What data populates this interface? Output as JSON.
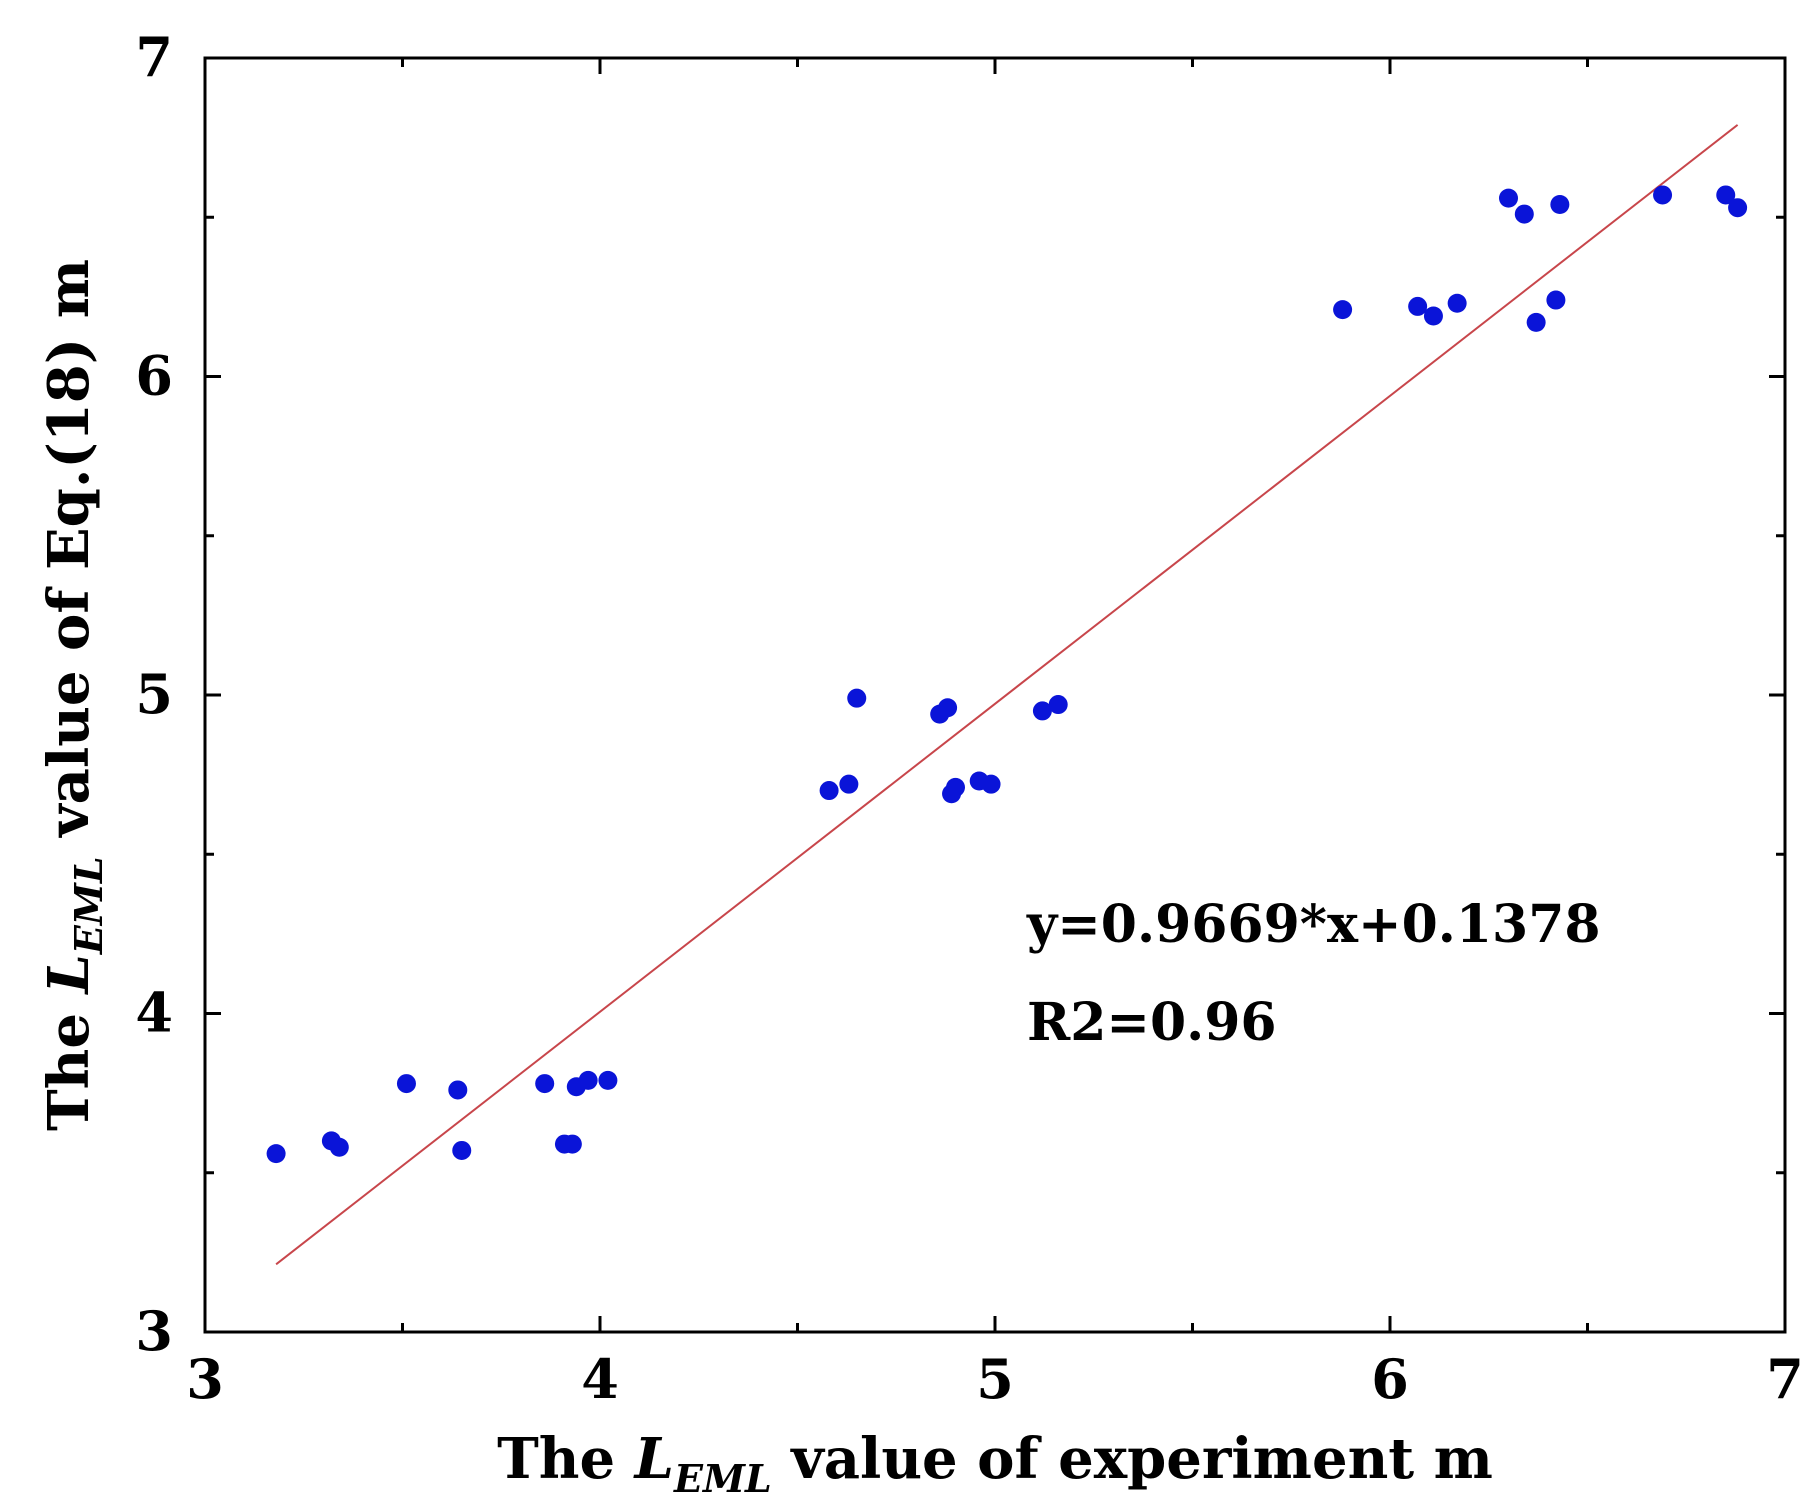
{
  "chart_data": {
    "type": "scatter",
    "title": "",
    "xlabel": {
      "prefix": "The ",
      "symbol": "L",
      "subscript": "EML",
      "suffix": " value of experiment  m"
    },
    "ylabel": {
      "prefix": "The ",
      "symbol": "L",
      "subscript": "EML",
      "suffix": " value of Eq.(18)  m"
    },
    "xlim": [
      3,
      7
    ],
    "ylim": [
      3,
      7
    ],
    "xticks": [
      3,
      4,
      5,
      6,
      7
    ],
    "yticks": [
      3,
      4,
      5,
      6,
      7
    ],
    "xtick_labels": [
      "3",
      "4",
      "5",
      "6",
      "7"
    ],
    "ytick_labels": [
      "3",
      "4",
      "5",
      "6",
      "7"
    ],
    "grid": false,
    "series": [
      {
        "name": "data",
        "color": "#0a14d8",
        "points": [
          [
            3.18,
            3.56
          ],
          [
            3.32,
            3.6
          ],
          [
            3.34,
            3.58
          ],
          [
            3.51,
            3.78
          ],
          [
            3.64,
            3.76
          ],
          [
            3.65,
            3.57
          ],
          [
            3.86,
            3.78
          ],
          [
            3.91,
            3.59
          ],
          [
            3.93,
            3.59
          ],
          [
            3.94,
            3.77
          ],
          [
            3.97,
            3.79
          ],
          [
            4.02,
            3.79
          ],
          [
            4.58,
            4.7
          ],
          [
            4.63,
            4.72
          ],
          [
            4.65,
            4.99
          ],
          [
            4.86,
            4.94
          ],
          [
            4.88,
            4.96
          ],
          [
            4.89,
            4.69
          ],
          [
            4.9,
            4.71
          ],
          [
            4.96,
            4.73
          ],
          [
            4.99,
            4.72
          ],
          [
            5.12,
            4.95
          ],
          [
            5.16,
            4.97
          ],
          [
            5.88,
            6.21
          ],
          [
            6.07,
            6.22
          ],
          [
            6.11,
            6.19
          ],
          [
            6.17,
            6.23
          ],
          [
            6.3,
            6.56
          ],
          [
            6.34,
            6.51
          ],
          [
            6.37,
            6.17
          ],
          [
            6.42,
            6.24
          ],
          [
            6.43,
            6.54
          ],
          [
            6.69,
            6.57
          ],
          [
            6.85,
            6.57
          ],
          [
            6.88,
            6.53
          ]
        ]
      }
    ],
    "fit_line": {
      "slope": 0.9669,
      "intercept": 0.1378,
      "x_range": [
        3.18,
        6.88
      ],
      "color": "#c8464b"
    },
    "annotations": [
      "y=0.9669*x+0.1378",
      "R2=0.96"
    ]
  }
}
